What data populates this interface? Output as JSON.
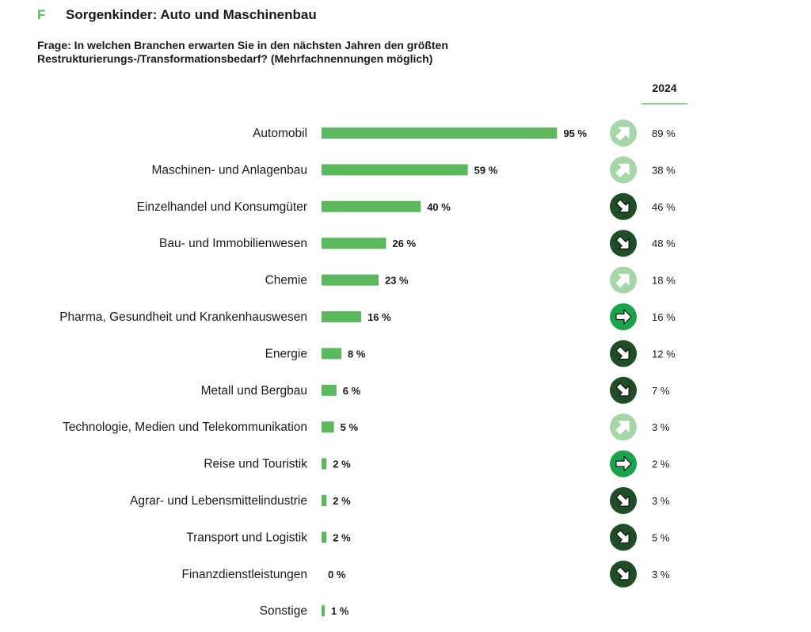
{
  "header": {
    "section_letter": "F",
    "title": "Sorgenkinder: Auto und Maschinenbau"
  },
  "question": "Frage: In welchen Branchen erwarten Sie in den nächsten Jahren den größten Restrukturierungs-/Transformationsbedarf? (Mehrfachnennungen möglich)",
  "comparison_column": {
    "label": "2024"
  },
  "colors": {
    "bar": "#5cb85c",
    "accent": "#5cb85c",
    "trend_up": "#a5d6a7",
    "trend_down": "#1f4d26",
    "trend_same": "#1aa34a",
    "text": "#1a1a1a"
  },
  "chart_data": {
    "type": "bar",
    "orientation": "horizontal",
    "title": "Sorgenkinder: Auto und Maschinenbau",
    "subtitle": "Frage: In welchen Branchen erwarten Sie in den nächsten Jahren den größten Restrukturierungs-/Transformationsbedarf? (Mehrfachnennungen möglich)",
    "unit": "%",
    "xlim": [
      0,
      100
    ],
    "categories": [
      "Automobil",
      "Maschinen- und Anlagenbau",
      "Einzelhandel und Konsumgüter",
      "Bau- und Immobilienwesen",
      "Chemie",
      "Pharma, Gesundheit und Krankenhauswesen",
      "Energie",
      "Metall und Bergbau",
      "Technologie, Medien und Telekommunikation",
      "Reise und Touristik",
      "Agrar- und Lebensmittelindustrie",
      "Transport und Logistik",
      "Finanzdienstleistungen",
      "Sonstige"
    ],
    "values": [
      95,
      59,
      40,
      26,
      23,
      16,
      8,
      6,
      5,
      2,
      2,
      2,
      0,
      1
    ],
    "value_labels": [
      "95 %",
      "59 %",
      "40 %",
      "26 %",
      "23 %",
      "16 %",
      "8 %",
      "6 %",
      "5 %",
      "2 %",
      "2 %",
      "2 %",
      "0 %",
      "1 %"
    ],
    "previous_year": {
      "label": "2024",
      "values": [
        89,
        38,
        46,
        48,
        18,
        16,
        12,
        7,
        3,
        2,
        3,
        5,
        3,
        null
      ],
      "value_labels": [
        "89 %",
        "38 %",
        "46 %",
        "48 %",
        "18 %",
        "16 %",
        "12 %",
        "7 %",
        "3 %",
        "2 %",
        "3 %",
        "5 %",
        "3 %",
        null
      ]
    },
    "trend": [
      "up",
      "up",
      "down",
      "down",
      "up",
      "same",
      "down",
      "down",
      "up",
      "same",
      "down",
      "down",
      "down",
      null
    ]
  }
}
